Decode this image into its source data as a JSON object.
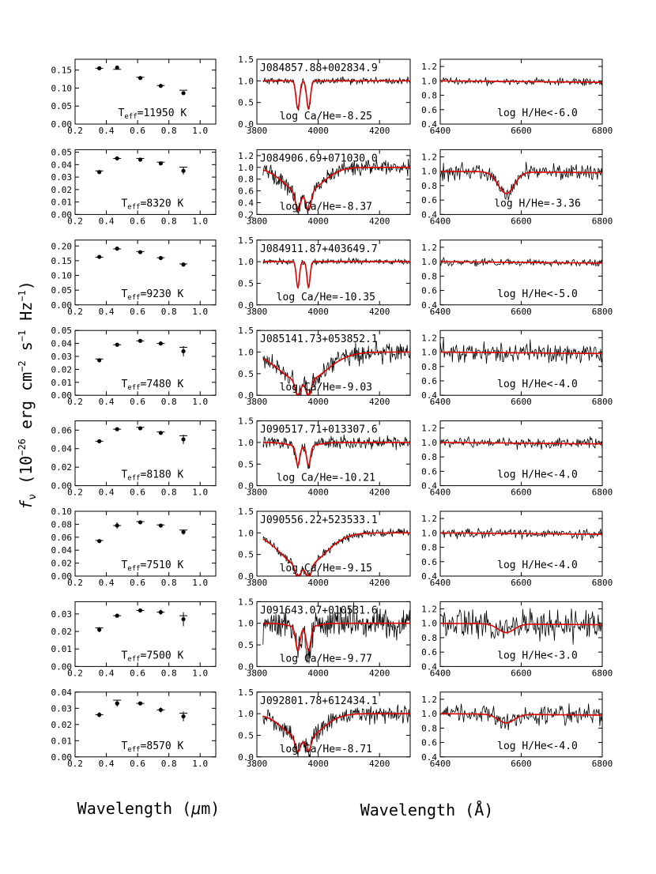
{
  "figure": {
    "ylabel": "f_ν (10^-26 erg cm^-2 s^-1 Hz^-1)",
    "xlabel_left": "Wavelength (μm)",
    "xlabel_right": "Wavelength (Å)"
  },
  "colors": {
    "data": "#000000",
    "model": "#e00000"
  },
  "chart_data": [
    {
      "type": "scatter",
      "panel": "photometry",
      "xlim": [
        0.2,
        1.1
      ],
      "ylim": [
        0,
        0.18
      ],
      "yticks": [
        0,
        0.05,
        0.1,
        0.15
      ],
      "yfmt": 2,
      "teff_label": "T_eff=11950 K",
      "x": [
        0.355,
        0.469,
        0.617,
        0.748,
        0.893
      ],
      "y": [
        0.155,
        0.157,
        0.128,
        0.106,
        0.086
      ],
      "yerr": [
        0.003,
        0.003,
        0.002,
        0.002,
        0.004
      ],
      "model": [
        0.155,
        0.152,
        0.13,
        0.107,
        0.094
      ]
    },
    {
      "type": "line",
      "panel": "Ca",
      "star": "J084857.88+002834.9",
      "annotation": "log Ca/He=-8.25",
      "xlim": [
        3800,
        4300
      ],
      "ylim": [
        0,
        1.5
      ],
      "yticks": [
        0,
        0.5,
        1.0,
        1.5
      ],
      "noise": 0.05,
      "seed": 11,
      "base": 1.0,
      "line_depth": 0.65,
      "line_width": 6,
      "broad_depth": 0.0,
      "broad_width": 40
    },
    {
      "type": "line",
      "panel": "H",
      "annotation": "log H/He<-6.0",
      "xlim": [
        6400,
        6800
      ],
      "ylim": [
        0.4,
        1.3
      ],
      "yticks": [
        0.4,
        0.6,
        0.8,
        1.0,
        1.2
      ],
      "noise": 0.03,
      "seed": 12,
      "ha_depth": 0.0,
      "ha_width": 10,
      "base": 1.0
    },
    {
      "type": "scatter",
      "panel": "photometry",
      "xlim": [
        0.2,
        1.1
      ],
      "ylim": [
        0,
        0.052
      ],
      "yticks": [
        0,
        0.01,
        0.02,
        0.03,
        0.04,
        0.05
      ],
      "yfmt": 2,
      "teff_label": "T_eff=8320 K",
      "x": [
        0.355,
        0.469,
        0.617,
        0.748,
        0.893
      ],
      "y": [
        0.034,
        0.045,
        0.044,
        0.041,
        0.035
      ],
      "yerr": [
        0.0015,
        0.001,
        0.001,
        0.001,
        0.003
      ],
      "model": [
        0.035,
        0.045,
        0.045,
        0.042,
        0.038
      ]
    },
    {
      "type": "line",
      "panel": "Ca",
      "star": "J084906.69+071030.0",
      "annotation": "log Ca/He=-8.37",
      "xlim": [
        3800,
        4300
      ],
      "ylim": [
        0.2,
        1.3
      ],
      "yticks": [
        0.2,
        0.4,
        0.6,
        0.8,
        1.0,
        1.2
      ],
      "noise": 0.08,
      "seed": 21,
      "base": 1.0,
      "line_depth": 0.3,
      "line_width": 8,
      "broad_depth": 0.45,
      "broad_width": 60
    },
    {
      "type": "line",
      "panel": "H",
      "annotation": "log H/He=-3.36",
      "xlim": [
        6400,
        6800
      ],
      "ylim": [
        0.4,
        1.3
      ],
      "yticks": [
        0.4,
        0.6,
        0.8,
        1.0,
        1.2
      ],
      "noise": 0.07,
      "seed": 22,
      "ha_depth": 0.3,
      "ha_width": 20,
      "base": 1.0
    },
    {
      "type": "scatter",
      "panel": "photometry",
      "xlim": [
        0.2,
        1.1
      ],
      "ylim": [
        0,
        0.22
      ],
      "yticks": [
        0,
        0.05,
        0.1,
        0.15,
        0.2
      ],
      "yfmt": 2,
      "teff_label": "T_eff=9230 K",
      "x": [
        0.355,
        0.469,
        0.617,
        0.748,
        0.893
      ],
      "y": [
        0.163,
        0.191,
        0.179,
        0.159,
        0.137
      ],
      "yerr": [
        0.003,
        0.003,
        0.003,
        0.002,
        0.004
      ],
      "model": [
        0.162,
        0.19,
        0.181,
        0.16,
        0.139
      ]
    },
    {
      "type": "line",
      "panel": "Ca",
      "star": "J084911.87+403649.7",
      "annotation": "log Ca/He=-10.35",
      "xlim": [
        3800,
        4300
      ],
      "ylim": [
        0,
        1.5
      ],
      "yticks": [
        0,
        0.5,
        1.0,
        1.5
      ],
      "noise": 0.04,
      "seed": 31,
      "base": 1.0,
      "line_depth": 0.6,
      "line_width": 5,
      "broad_depth": 0.0,
      "broad_width": 40
    },
    {
      "type": "line",
      "panel": "H",
      "annotation": "log H/He<-5.0",
      "xlim": [
        6400,
        6800
      ],
      "ylim": [
        0.4,
        1.3
      ],
      "yticks": [
        0.4,
        0.6,
        0.8,
        1.0,
        1.2
      ],
      "noise": 0.03,
      "seed": 32,
      "ha_depth": 0.0,
      "ha_width": 10,
      "base": 1.0
    },
    {
      "type": "scatter",
      "panel": "photometry",
      "xlim": [
        0.2,
        1.1
      ],
      "ylim": [
        0,
        0.05
      ],
      "yticks": [
        0,
        0.01,
        0.02,
        0.03,
        0.04,
        0.05
      ],
      "yfmt": 2,
      "teff_label": "T_eff=7480 K",
      "x": [
        0.355,
        0.469,
        0.617,
        0.748,
        0.893
      ],
      "y": [
        0.027,
        0.039,
        0.042,
        0.04,
        0.034
      ],
      "yerr": [
        0.0015,
        0.001,
        0.001,
        0.001,
        0.004
      ],
      "model": [
        0.028,
        0.039,
        0.042,
        0.04,
        0.037
      ]
    },
    {
      "type": "line",
      "panel": "Ca",
      "star": "J085141.73+053852.1",
      "annotation": "log Ca/He=-9.03",
      "xlim": [
        3800,
        4300
      ],
      "ylim": [
        0,
        1.5
      ],
      "yticks": [
        0,
        0.5,
        1.0,
        1.5
      ],
      "noise": 0.14,
      "seed": 41,
      "base": 1.0,
      "line_depth": 0.35,
      "line_width": 8,
      "broad_depth": 0.7,
      "broad_width": 75
    },
    {
      "type": "line",
      "panel": "H",
      "annotation": "log H/He<-4.0",
      "xlim": [
        6400,
        6800
      ],
      "ylim": [
        0.4,
        1.3
      ],
      "yticks": [
        0.4,
        0.6,
        0.8,
        1.0,
        1.2
      ],
      "noise": 0.09,
      "seed": 42,
      "ha_depth": 0.0,
      "ha_width": 10,
      "base": 1.0
    },
    {
      "type": "scatter",
      "panel": "photometry",
      "xlim": [
        0.2,
        1.1
      ],
      "ylim": [
        0,
        0.07
      ],
      "yticks": [
        0,
        0.02,
        0.04,
        0.06
      ],
      "yfmt": 2,
      "teff_label": "T_eff=8180 K",
      "x": [
        0.355,
        0.469,
        0.617,
        0.748,
        0.893
      ],
      "y": [
        0.048,
        0.061,
        0.062,
        0.057,
        0.05
      ],
      "yerr": [
        0.0015,
        0.0015,
        0.0015,
        0.0015,
        0.005
      ],
      "model": [
        0.048,
        0.061,
        0.063,
        0.058,
        0.054
      ]
    },
    {
      "type": "line",
      "panel": "Ca",
      "star": "J090517.71+013307.6",
      "annotation": "log Ca/He=-10.21",
      "xlim": [
        3800,
        4300
      ],
      "ylim": [
        0,
        1.5
      ],
      "yticks": [
        0,
        0.5,
        1.0,
        1.5
      ],
      "noise": 0.09,
      "seed": 51,
      "base": 1.0,
      "line_depth": 0.45,
      "line_width": 6,
      "broad_depth": 0.1,
      "broad_width": 40
    },
    {
      "type": "line",
      "panel": "H",
      "annotation": "log H/He<-4.0",
      "xlim": [
        6400,
        6800
      ],
      "ylim": [
        0.4,
        1.3
      ],
      "yticks": [
        0.4,
        0.6,
        0.8,
        1.0,
        1.2
      ],
      "noise": 0.05,
      "seed": 52,
      "ha_depth": 0.0,
      "ha_width": 10,
      "base": 1.0
    },
    {
      "type": "scatter",
      "panel": "photometry",
      "xlim": [
        0.2,
        1.1
      ],
      "ylim": [
        0,
        0.1
      ],
      "yticks": [
        0,
        0.02,
        0.04,
        0.06,
        0.08,
        0.1
      ],
      "yfmt": 2,
      "teff_label": "T_eff=7510 K",
      "x": [
        0.355,
        0.469,
        0.617,
        0.748,
        0.893
      ],
      "y": [
        0.054,
        0.078,
        0.083,
        0.078,
        0.068
      ],
      "yerr": [
        0.002,
        0.005,
        0.002,
        0.002,
        0.004
      ],
      "model": [
        0.055,
        0.078,
        0.084,
        0.079,
        0.071
      ]
    },
    {
      "type": "line",
      "panel": "Ca",
      "star": "J090556.22+523533.1",
      "annotation": "log Ca/He=-9.15",
      "xlim": [
        3800,
        4300
      ],
      "ylim": [
        0,
        1.5
      ],
      "yticks": [
        0,
        0.5,
        1.0,
        1.5
      ],
      "noise": 0.06,
      "seed": 61,
      "base": 1.0,
      "line_depth": 0.3,
      "line_width": 8,
      "broad_depth": 0.8,
      "broad_width": 70
    },
    {
      "type": "line",
      "panel": "H",
      "annotation": "log H/He<-4.0",
      "xlim": [
        6400,
        6800
      ],
      "ylim": [
        0.4,
        1.3
      ],
      "yticks": [
        0.4,
        0.6,
        0.8,
        1.0,
        1.2
      ],
      "noise": 0.04,
      "seed": 62,
      "ha_depth": 0.0,
      "ha_width": 10,
      "base": 1.0
    },
    {
      "type": "scatter",
      "panel": "photometry",
      "xlim": [
        0.2,
        1.1
      ],
      "ylim": [
        0,
        0.037
      ],
      "yticks": [
        0,
        0.01,
        0.02,
        0.03
      ],
      "yfmt": 2,
      "teff_label": "T_eff=7500 K",
      "x": [
        0.355,
        0.469,
        0.617,
        0.748,
        0.893
      ],
      "y": [
        0.021,
        0.029,
        0.032,
        0.031,
        0.027
      ],
      "yerr": [
        0.0015,
        0.001,
        0.001,
        0.0015,
        0.004
      ],
      "model": [
        0.022,
        0.029,
        0.032,
        0.031,
        0.029
      ]
    },
    {
      "type": "line",
      "panel": "Ca",
      "star": "J091643.07+010531.6",
      "annotation": "log Ca/He=-9.77",
      "xlim": [
        3800,
        4300
      ],
      "ylim": [
        0,
        1.5
      ],
      "yticks": [
        0,
        0.5,
        1.0,
        1.5
      ],
      "noise": 0.22,
      "seed": 71,
      "base": 1.0,
      "line_depth": 0.55,
      "line_width": 7,
      "broad_depth": 0.1,
      "broad_width": 40
    },
    {
      "type": "line",
      "panel": "H",
      "annotation": "log H/He<-3.0",
      "xlim": [
        6400,
        6800
      ],
      "ylim": [
        0.4,
        1.3
      ],
      "yticks": [
        0.4,
        0.6,
        0.8,
        1.0,
        1.2
      ],
      "noise": 0.14,
      "seed": 72,
      "ha_depth": 0.12,
      "ha_width": 20,
      "base": 1.0
    },
    {
      "type": "scatter",
      "panel": "photometry",
      "xlim": [
        0.2,
        1.1
      ],
      "ylim": [
        0,
        0.04
      ],
      "yticks": [
        0,
        0.01,
        0.02,
        0.03,
        0.04
      ],
      "yfmt": 2,
      "teff_label": "T_eff=8570 K",
      "x": [
        0.355,
        0.469,
        0.617,
        0.748,
        0.893
      ],
      "y": [
        0.026,
        0.033,
        0.033,
        0.029,
        0.025
      ],
      "yerr": [
        0.0015,
        0.002,
        0.001,
        0.0015,
        0.003
      ],
      "model": [
        0.026,
        0.035,
        0.033,
        0.029,
        0.027
      ]
    },
    {
      "type": "line",
      "panel": "Ca",
      "star": "J092801.78+612434.1",
      "annotation": "log Ca/He=-8.71",
      "xlim": [
        3800,
        4300
      ],
      "ylim": [
        0,
        1.5
      ],
      "yticks": [
        0,
        0.5,
        1.0,
        1.5
      ],
      "noise": 0.15,
      "seed": 81,
      "base": 1.0,
      "line_depth": 0.3,
      "line_width": 8,
      "broad_depth": 0.6,
      "broad_width": 60
    },
    {
      "type": "line",
      "panel": "H",
      "annotation": "log H/He<-4.0",
      "xlim": [
        6400,
        6800
      ],
      "ylim": [
        0.4,
        1.3
      ],
      "yticks": [
        0.4,
        0.6,
        0.8,
        1.0,
        1.2
      ],
      "noise": 0.08,
      "seed": 82,
      "ha_depth": 0.12,
      "ha_width": 20,
      "base": 1.0
    }
  ]
}
